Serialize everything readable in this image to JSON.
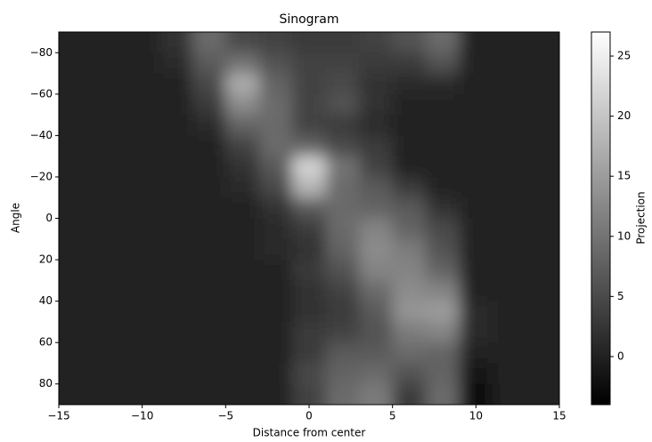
{
  "chart_data": {
    "type": "heatmap",
    "title": "Sinogram",
    "xlabel": "Distance from center",
    "ylabel": "Angle",
    "x_edges": [
      -15,
      -13,
      -11,
      -9,
      -7,
      -5,
      -3,
      -1,
      1,
      3,
      5,
      7,
      9,
      11,
      13,
      15
    ],
    "y_edges": [
      -90,
      -80,
      -70,
      -60,
      -50,
      -40,
      -30,
      -20,
      -10,
      0,
      10,
      20,
      30,
      40,
      50,
      60,
      70,
      80,
      90
    ],
    "values": [
      [
        0,
        0,
        0,
        2,
        9,
        5,
        4,
        3,
        3,
        4,
        6,
        9,
        0,
        0,
        0
      ],
      [
        0,
        0,
        0,
        1,
        7,
        10,
        6,
        4,
        4,
        3,
        3,
        6,
        0,
        0,
        0
      ],
      [
        0,
        0,
        0,
        0,
        5,
        17,
        8,
        4,
        5,
        2,
        1,
        1,
        0,
        0,
        0
      ],
      [
        0,
        0,
        0,
        0,
        3,
        13,
        9,
        4,
        6,
        2,
        0,
        0,
        0,
        0,
        0
      ],
      [
        0,
        0,
        0,
        0,
        1,
        8,
        9,
        4,
        3,
        1,
        0,
        0,
        0,
        0,
        0
      ],
      [
        0,
        0,
        0,
        0,
        0,
        4,
        9,
        8,
        5,
        3,
        0,
        0,
        0,
        0,
        0
      ],
      [
        0,
        0,
        0,
        0,
        0,
        2,
        7,
        22,
        10,
        4,
        0,
        0,
        0,
        0,
        0
      ],
      [
        0,
        0,
        0,
        0,
        0,
        1,
        5,
        18,
        9,
        7,
        3,
        0,
        0,
        0,
        0
      ],
      [
        0,
        0,
        0,
        0,
        0,
        0,
        2,
        7,
        9,
        8,
        7,
        2,
        0,
        0,
        0
      ],
      [
        0,
        0,
        0,
        0,
        0,
        0,
        1,
        3,
        9,
        12,
        8,
        5,
        0,
        0,
        0
      ],
      [
        0,
        0,
        0,
        0,
        0,
        0,
        1,
        2,
        8,
        13,
        11,
        6,
        0,
        0,
        0
      ],
      [
        0,
        0,
        0,
        0,
        0,
        0,
        0,
        3,
        6,
        12,
        12,
        8,
        0,
        0,
        0
      ],
      [
        0,
        0,
        0,
        0,
        0,
        0,
        0,
        2,
        4,
        9,
        13,
        12,
        0,
        0,
        0
      ],
      [
        0,
        0,
        0,
        0,
        0,
        0,
        0,
        2,
        3,
        7,
        14,
        15,
        1,
        0,
        0
      ],
      [
        0,
        0,
        0,
        0,
        0,
        0,
        0,
        3,
        4,
        6,
        11,
        12,
        1,
        0,
        0
      ],
      [
        0,
        0,
        0,
        0,
        0,
        0,
        0,
        3,
        7,
        7,
        9,
        8,
        0,
        0,
        0
      ],
      [
        0,
        0,
        0,
        0,
        0,
        0,
        0,
        5,
        8,
        9,
        6,
        8,
        -1,
        0,
        0
      ],
      [
        0,
        0,
        0,
        0,
        0,
        0,
        0,
        4,
        9,
        11,
        3,
        9,
        -3,
        0,
        0
      ]
    ],
    "xlim": [
      -15,
      15
    ],
    "xticks": [
      {
        "value": -15,
        "label": "−15"
      },
      {
        "value": -10,
        "label": "−10"
      },
      {
        "value": -5,
        "label": "−5"
      },
      0,
      5,
      10,
      15
    ],
    "ylim": [
      -90,
      90
    ],
    "yticks": [
      {
        "value": -80,
        "label": "−80"
      },
      {
        "value": -60,
        "label": "−60"
      },
      {
        "value": -40,
        "label": "−40"
      },
      {
        "value": -20,
        "label": "−20"
      },
      0,
      20,
      40,
      60,
      80
    ],
    "colormap": "gray",
    "clim": [
      -4,
      27
    ],
    "colorbar_ticks": [
      0,
      5,
      10,
      15,
      20,
      25
    ],
    "colorbar_label": "Projection"
  }
}
